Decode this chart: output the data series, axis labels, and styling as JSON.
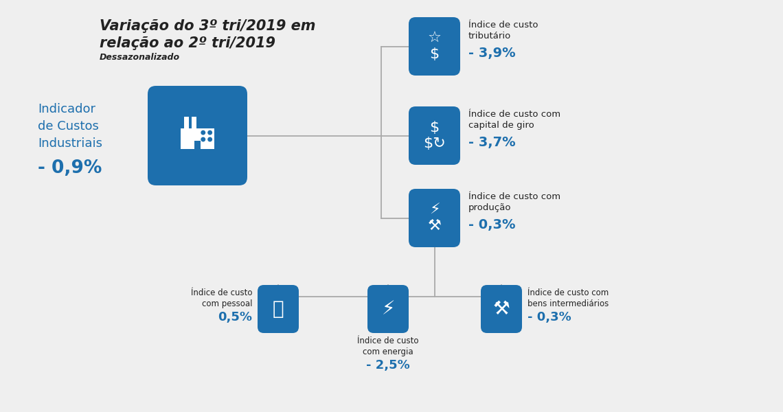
{
  "title_line1": "Variação do 3º tri/2019 em",
  "title_line2": "relação ao 2º tri/2019",
  "subtitle": "Dessazonalizado",
  "main_label": "Indicador\nde Custos\nIndustriais",
  "main_value": "- 0,9%",
  "blue": "#1d6fad",
  "dark": "#222222",
  "text_blue": "#1d6fad",
  "line_col": "#aaaaaa",
  "bg": "#f0f0f0",
  "nodes": [
    {
      "label": "Índice de custo\ntributário",
      "value": "- 3,9%"
    },
    {
      "label": "Índice de custo com\ncapital de giro",
      "value": "- 3,7%"
    },
    {
      "label": "Índice de custo com\nprodução",
      "value": "- 0,3%"
    }
  ],
  "sub_nodes": [
    {
      "label": "Índice de custo\ncom pessoal",
      "value": "0,5%",
      "pos": "left"
    },
    {
      "label": "Índice de custo\ncom energia",
      "value": "- 2,5%",
      "pos": "below"
    },
    {
      "label": "Índice de custo com\nbens intermediários",
      "value": "- 0,3%",
      "pos": "right"
    }
  ]
}
